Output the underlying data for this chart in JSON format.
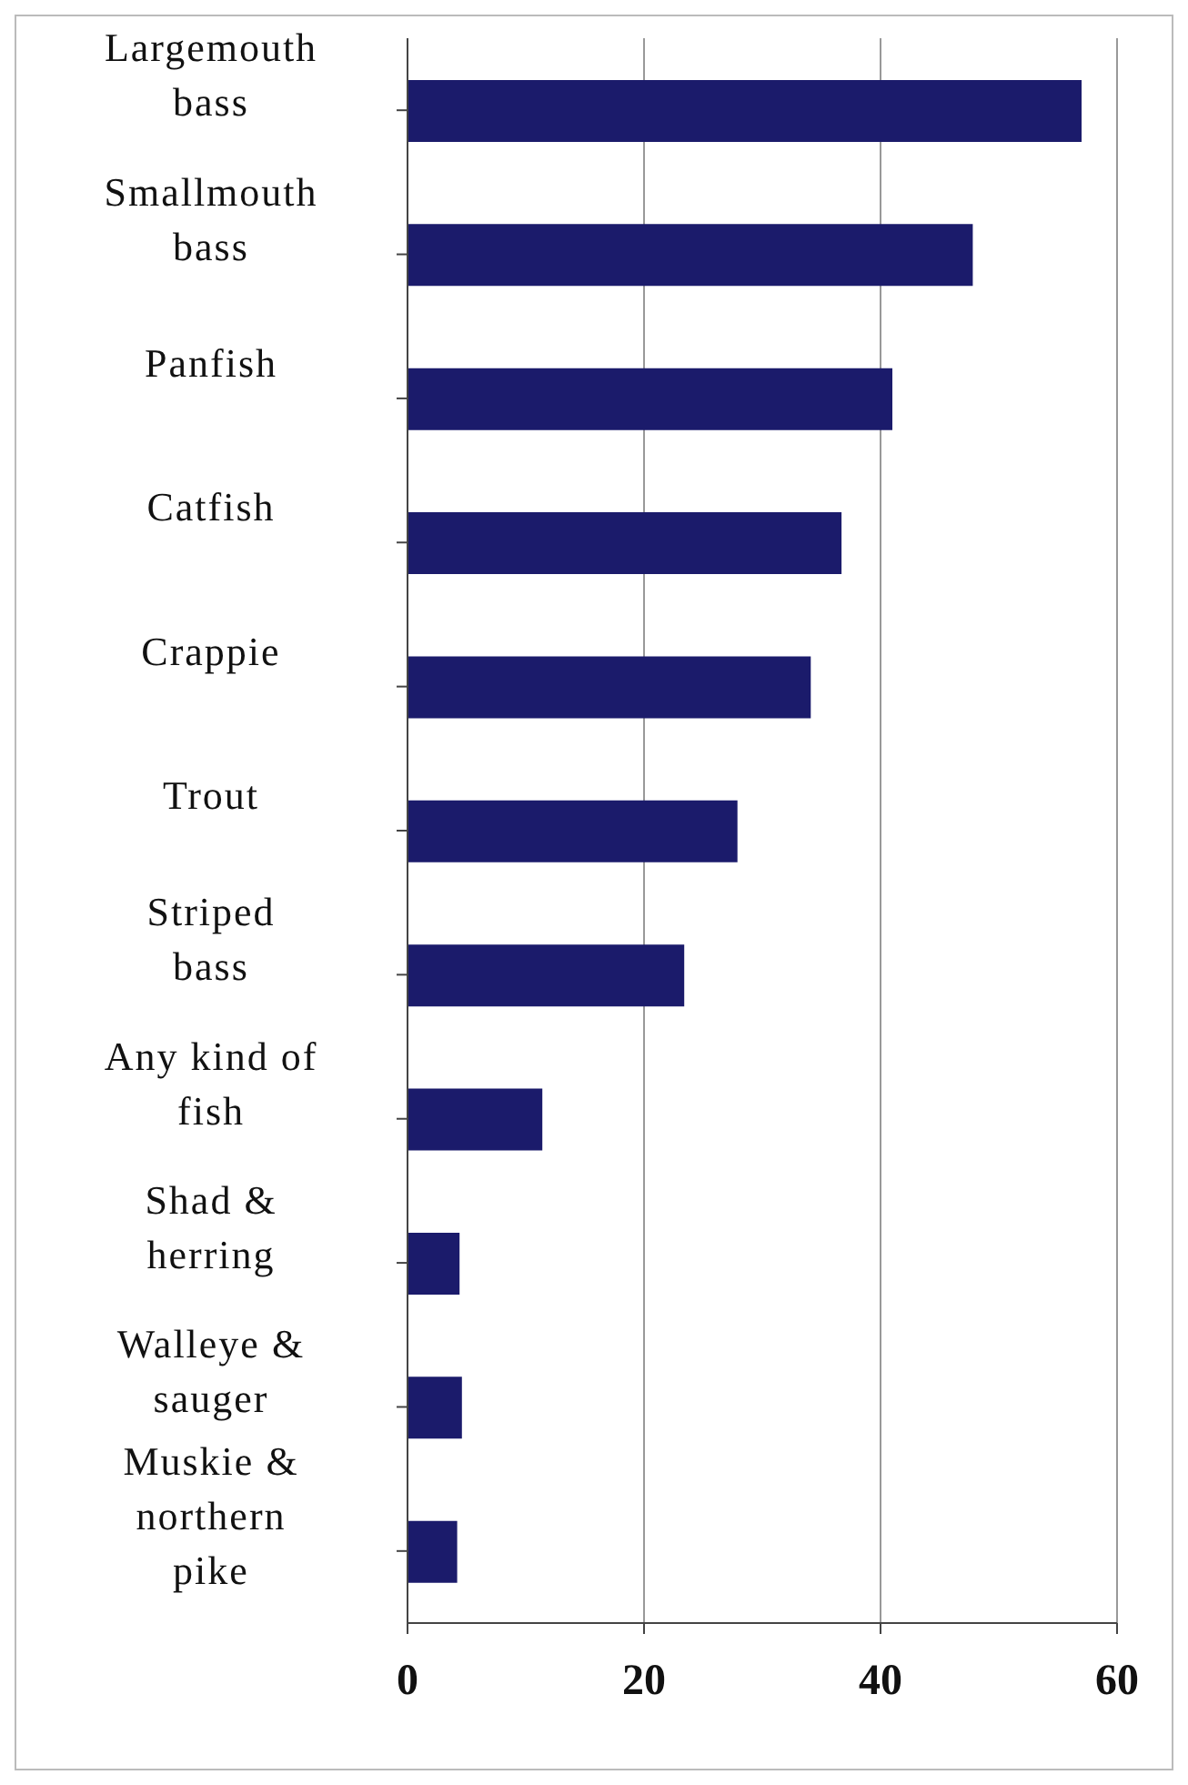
{
  "chart_data": {
    "type": "bar",
    "orientation": "horizontal",
    "categories": [
      "Largemouth bass",
      "Smallmouth bass",
      "Panfish",
      "Catfish",
      "Crappie",
      "Trout",
      "Striped bass",
      "Any kind of fish",
      "Shad & herring",
      "Walleye & sauger",
      "Muskie & northern pike"
    ],
    "values": [
      57,
      47.8,
      41,
      36.7,
      34.1,
      27.9,
      23.4,
      11.4,
      4.4,
      4.6,
      4.2
    ],
    "color": "#1b1b6b",
    "xlim": [
      0,
      60
    ],
    "xticks": [
      0,
      20,
      40,
      60
    ],
    "grid": "x"
  }
}
